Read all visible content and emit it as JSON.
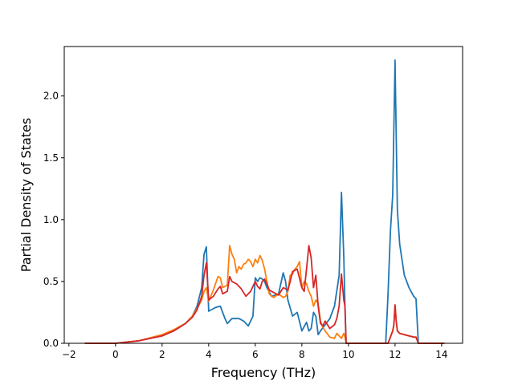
{
  "chart_data": {
    "type": "line",
    "title": "",
    "xlabel": "Frequency (THz)",
    "ylabel": "Partial Density of States",
    "xlim": [
      -2.2,
      14.9
    ],
    "ylim": [
      0.0,
      2.4
    ],
    "xticks": [
      -2,
      0,
      2,
      4,
      6,
      8,
      10,
      12,
      14
    ],
    "xtick_labels": [
      "−2",
      "0",
      "2",
      "4",
      "6",
      "8",
      "10",
      "12",
      "14"
    ],
    "yticks": [
      0.0,
      0.5,
      1.0,
      1.5,
      2.0
    ],
    "ytick_labels": [
      "0.0",
      "0.5",
      "1.0",
      "1.5",
      "2.0"
    ],
    "grid": false,
    "legend": "none",
    "series": [
      {
        "color": "#1f77b4",
        "x": [
          -1.3,
          0.0,
          1.0,
          2.0,
          2.5,
          3.0,
          3.3,
          3.5,
          3.7,
          3.8,
          3.9,
          4.0,
          4.1,
          4.3,
          4.5,
          4.7,
          4.8,
          5.0,
          5.3,
          5.5,
          5.7,
          5.9,
          6.0,
          6.1,
          6.2,
          6.3,
          6.4,
          6.5,
          6.7,
          7.0,
          7.2,
          7.3,
          7.4,
          7.6,
          7.8,
          8.0,
          8.2,
          8.3,
          8.4,
          8.5,
          8.6,
          8.7,
          8.8,
          9.0,
          9.2,
          9.4,
          9.6,
          9.7,
          9.8,
          9.85,
          9.9,
          10.0,
          11.0,
          11.6,
          11.7,
          11.8,
          11.9,
          12.0,
          12.1,
          12.2,
          12.4,
          12.6,
          12.8,
          12.9,
          13.0,
          14.1
        ],
        "y": [
          0.0,
          0.0,
          0.02,
          0.06,
          0.1,
          0.16,
          0.22,
          0.3,
          0.45,
          0.72,
          0.78,
          0.26,
          0.27,
          0.29,
          0.3,
          0.2,
          0.16,
          0.2,
          0.2,
          0.18,
          0.14,
          0.22,
          0.53,
          0.5,
          0.53,
          0.52,
          0.5,
          0.45,
          0.38,
          0.4,
          0.57,
          0.5,
          0.35,
          0.22,
          0.25,
          0.1,
          0.17,
          0.1,
          0.12,
          0.25,
          0.22,
          0.07,
          0.1,
          0.15,
          0.2,
          0.3,
          0.55,
          1.22,
          0.7,
          0.3,
          0.0,
          0.0,
          0.0,
          0.0,
          0.4,
          0.9,
          1.2,
          2.29,
          1.08,
          0.8,
          0.55,
          0.45,
          0.38,
          0.36,
          0.0,
          0.0
        ]
      },
      {
        "color": "#ff7f0e",
        "x": [
          -1.3,
          0.0,
          1.0,
          2.0,
          2.5,
          3.0,
          3.3,
          3.5,
          3.7,
          3.8,
          3.9,
          4.0,
          4.2,
          4.4,
          4.5,
          4.6,
          4.8,
          4.9,
          5.0,
          5.1,
          5.2,
          5.3,
          5.4,
          5.5,
          5.6,
          5.7,
          5.8,
          5.9,
          6.0,
          6.1,
          6.2,
          6.3,
          6.4,
          6.5,
          6.6,
          6.7,
          6.8,
          7.0,
          7.2,
          7.3,
          7.4,
          7.5,
          7.6,
          7.7,
          7.8,
          7.9,
          8.0,
          8.1,
          8.2,
          8.3,
          8.4,
          8.5,
          8.6,
          8.7,
          8.8,
          8.9,
          9.0,
          9.2,
          9.4,
          9.5,
          9.6,
          9.7,
          9.8,
          9.85,
          9.9,
          10.0,
          11.0,
          11.7,
          11.8,
          11.9,
          11.95,
          12.0,
          12.05,
          12.1,
          12.2,
          12.4,
          12.6,
          12.8,
          12.9,
          13.0,
          14.1
        ],
        "y": [
          0.0,
          0.0,
          0.02,
          0.07,
          0.11,
          0.16,
          0.22,
          0.28,
          0.35,
          0.42,
          0.45,
          0.34,
          0.43,
          0.54,
          0.53,
          0.45,
          0.47,
          0.79,
          0.72,
          0.68,
          0.57,
          0.62,
          0.6,
          0.64,
          0.65,
          0.68,
          0.66,
          0.62,
          0.68,
          0.65,
          0.71,
          0.67,
          0.6,
          0.5,
          0.4,
          0.38,
          0.37,
          0.4,
          0.37,
          0.38,
          0.42,
          0.55,
          0.56,
          0.6,
          0.62,
          0.66,
          0.45,
          0.5,
          0.48,
          0.42,
          0.38,
          0.3,
          0.35,
          0.32,
          0.18,
          0.13,
          0.1,
          0.05,
          0.04,
          0.08,
          0.06,
          0.04,
          0.08,
          0.05,
          0.0,
          0.0,
          0.0,
          0.0,
          0.05,
          0.1,
          0.15,
          0.31,
          0.18,
          0.1,
          0.08,
          0.07,
          0.06,
          0.05,
          0.05,
          0.0,
          0.0
        ]
      },
      {
        "color": "#d62728",
        "x": [
          -1.3,
          0.0,
          1.0,
          2.0,
          2.5,
          3.0,
          3.3,
          3.5,
          3.7,
          3.8,
          3.9,
          4.0,
          4.2,
          4.4,
          4.5,
          4.6,
          4.8,
          4.9,
          5.0,
          5.2,
          5.4,
          5.6,
          5.8,
          6.0,
          6.1,
          6.2,
          6.3,
          6.4,
          6.5,
          6.6,
          6.8,
          7.0,
          7.2,
          7.4,
          7.5,
          7.6,
          7.8,
          8.0,
          8.1,
          8.2,
          8.3,
          8.4,
          8.5,
          8.6,
          8.7,
          8.8,
          8.9,
          9.0,
          9.2,
          9.4,
          9.5,
          9.6,
          9.7,
          9.8,
          9.85,
          9.9,
          10.0,
          11.0,
          11.7,
          11.8,
          11.9,
          11.95,
          12.0,
          12.05,
          12.1,
          12.2,
          12.4,
          12.6,
          12.8,
          12.9,
          13.0,
          14.1
        ],
        "y": [
          0.0,
          0.0,
          0.02,
          0.06,
          0.1,
          0.16,
          0.21,
          0.27,
          0.38,
          0.55,
          0.65,
          0.35,
          0.38,
          0.44,
          0.46,
          0.4,
          0.42,
          0.54,
          0.5,
          0.48,
          0.44,
          0.38,
          0.42,
          0.5,
          0.46,
          0.44,
          0.5,
          0.52,
          0.48,
          0.43,
          0.41,
          0.39,
          0.45,
          0.43,
          0.5,
          0.58,
          0.6,
          0.45,
          0.42,
          0.6,
          0.79,
          0.69,
          0.45,
          0.55,
          0.3,
          0.16,
          0.14,
          0.18,
          0.12,
          0.15,
          0.2,
          0.3,
          0.56,
          0.35,
          0.3,
          0.0,
          0.0,
          0.0,
          0.0,
          0.05,
          0.1,
          0.15,
          0.31,
          0.18,
          0.1,
          0.08,
          0.07,
          0.06,
          0.05,
          0.05,
          0.0,
          0.0
        ]
      }
    ]
  }
}
